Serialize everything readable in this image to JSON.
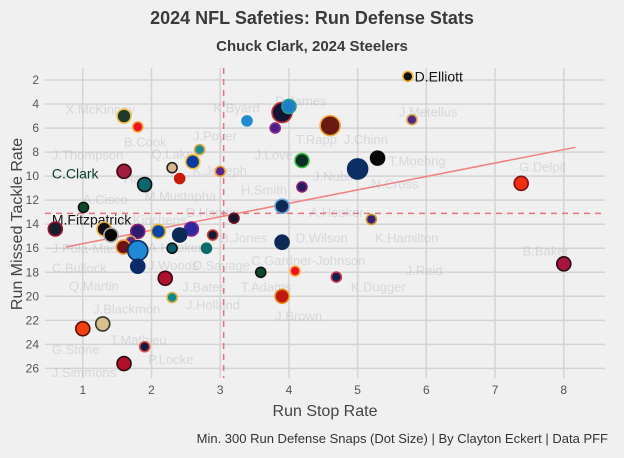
{
  "chart_data": {
    "type": "scatter",
    "title": "2024 NFL Safeties: Run Defense Stats",
    "subtitle": "Chuck Clark, 2024 Steelers",
    "xlabel": "Run Stop Rate",
    "ylabel": "Run Missed Tackle Rate",
    "caption": "Min. 300 Run Defense Snaps (Dot Size) | By Clayton Eckert | Data PFF",
    "xlim": [
      0.45,
      8.6
    ],
    "ylim": [
      26.8,
      1.0
    ],
    "y_inverted": true,
    "x_ticks": [
      1,
      2,
      3,
      4,
      5,
      6,
      7,
      8
    ],
    "y_ticks": [
      2,
      4,
      6,
      8,
      10,
      12,
      14,
      16,
      18,
      20,
      22,
      24,
      26
    ],
    "grid": true,
    "mean_x": 3.05,
    "mean_y": 13.1,
    "trend_line": {
      "x": [
        0.75,
        8.17
      ],
      "y": [
        15.9,
        7.6
      ]
    },
    "colors": {
      "reference": "#e8737a",
      "trend": "#f08080",
      "highlight_text": "#0b3d2c"
    },
    "points": [
      {
        "x": 5.73,
        "y": 1.7,
        "size": 1,
        "fill": "#101010",
        "stroke": "#f2b632"
      },
      {
        "x": 5.79,
        "y": 5.3,
        "size": 1,
        "fill": "#4f2683",
        "stroke": "#d4a640"
      },
      {
        "x": 4.6,
        "y": 5.8,
        "size": 3,
        "fill": "#6b1a12",
        "stroke": "#f2a93b"
      },
      {
        "x": 3.9,
        "y": 4.7,
        "size": 3,
        "fill": "#141432",
        "stroke": "#c83232"
      },
      {
        "x": 4.0,
        "y": 4.2,
        "size": 2,
        "fill": "#1e7ec8",
        "stroke": "#2a9d8f"
      },
      {
        "x": 3.8,
        "y": 6.0,
        "size": 1,
        "fill": "#4b1e8a",
        "stroke": "#8b2a8b"
      },
      {
        "x": 3.39,
        "y": 5.4,
        "size": 1,
        "fill": "#1f8ad0",
        "stroke": "#1f8ad0"
      },
      {
        "x": 4.19,
        "y": 8.7,
        "size": 2,
        "fill": "#0c2d23",
        "stroke": "#3dbb3d"
      },
      {
        "x": 5.0,
        "y": 9.4,
        "size": 3,
        "fill": "#0b2e63",
        "stroke": "#0b2e63"
      },
      {
        "x": 5.29,
        "y": 8.5,
        "size": 2,
        "fill": "#050505",
        "stroke": "#050505"
      },
      {
        "x": 4.19,
        "y": 10.9,
        "size": 1,
        "fill": "#241c5c",
        "stroke": "#8a1f6f"
      },
      {
        "x": 3.9,
        "y": 12.5,
        "size": 2,
        "fill": "#0b2a55",
        "stroke": "#6aa0d8"
      },
      {
        "x": 5.2,
        "y": 13.6,
        "size": 1,
        "fill": "#3b1d7a",
        "stroke": "#c69c2e"
      },
      {
        "x": 7.38,
        "y": 10.6,
        "size": 2,
        "fill": "#f2300f",
        "stroke": "#7a1010"
      },
      {
        "x": 8.0,
        "y": 17.3,
        "size": 2,
        "fill": "#a4163f",
        "stroke": "#2a0a10"
      },
      {
        "x": 3.9,
        "y": 15.5,
        "size": 2,
        "fill": "#0b2a55",
        "stroke": "#0b2a55"
      },
      {
        "x": 3.59,
        "y": 18.0,
        "size": 1,
        "fill": "#0d4a2c",
        "stroke": "#111"
      },
      {
        "x": 4.09,
        "y": 17.9,
        "size": 1,
        "fill": "#f0101e",
        "stroke": "#f5b041"
      },
      {
        "x": 4.69,
        "y": 18.4,
        "size": 1,
        "fill": "#141e48",
        "stroke": "#c8325a"
      },
      {
        "x": 3.9,
        "y": 20.0,
        "size": 2,
        "fill": "#c0180c",
        "stroke": "#e89020"
      },
      {
        "x": 3.2,
        "y": 13.5,
        "size": 1,
        "fill": "#141a2e",
        "stroke": "#6a1020"
      },
      {
        "x": 2.89,
        "y": 14.9,
        "size": 1,
        "fill": "#101c38",
        "stroke": "#d03a30"
      },
      {
        "x": 2.58,
        "y": 14.4,
        "size": 2,
        "fill": "#2a2aa0",
        "stroke": "#8a1f8a"
      },
      {
        "x": 2.41,
        "y": 14.9,
        "size": 2,
        "fill": "#0b2a55",
        "stroke": "#0b2a55"
      },
      {
        "x": 2.1,
        "y": 14.6,
        "size": 2,
        "fill": "#0a45a0",
        "stroke": "#e8b830"
      },
      {
        "x": 1.8,
        "y": 14.6,
        "size": 2,
        "fill": "#2a1a70",
        "stroke": "#8a1f6f"
      },
      {
        "x": 1.7,
        "y": 15.4,
        "size": 1,
        "fill": "#5a2590",
        "stroke": "#d4a640"
      },
      {
        "x": 1.59,
        "y": 15.9,
        "size": 2,
        "fill": "#6a1414",
        "stroke": "#f0a030"
      },
      {
        "x": 1.8,
        "y": 16.2,
        "size": 3,
        "fill": "#2188d8",
        "stroke": "#0b2a55"
      },
      {
        "x": 1.8,
        "y": 17.5,
        "size": 2,
        "fill": "#0b2a6a",
        "stroke": "#0b2a6a"
      },
      {
        "x": 2.3,
        "y": 16.0,
        "size": 1,
        "fill": "#0a5a6a",
        "stroke": "#111"
      },
      {
        "x": 2.8,
        "y": 16.0,
        "size": 1,
        "fill": "#0c6a6a",
        "stroke": "#0c6a6a"
      },
      {
        "x": 2.2,
        "y": 18.5,
        "size": 2,
        "fill": "#b01030",
        "stroke": "#3a0a10"
      },
      {
        "x": 2.3,
        "y": 20.1,
        "size": 1,
        "fill": "#0a8a8a",
        "stroke": "#e0b040"
      },
      {
        "x": 1.31,
        "y": 14.4,
        "size": 2,
        "fill": "#111",
        "stroke": "#f0b030"
      },
      {
        "x": 1.41,
        "y": 14.9,
        "size": 2,
        "fill": "#050505",
        "stroke": "#aaa"
      },
      {
        "x": 0.6,
        "y": 14.4,
        "size": 2,
        "fill": "#14202e",
        "stroke": "#a01030"
      },
      {
        "x": 1.01,
        "y": 12.6,
        "size": 1,
        "fill": "#0d4a2c",
        "stroke": "#111"
      },
      {
        "x": 1.0,
        "y": 22.7,
        "size": 2,
        "fill": "#f04010",
        "stroke": "#5a1000"
      },
      {
        "x": 1.29,
        "y": 22.3,
        "size": 2,
        "fill": "#d8c08a",
        "stroke": "#333"
      },
      {
        "x": 1.9,
        "y": 24.2,
        "size": 1,
        "fill": "#141a40",
        "stroke": "#e05040"
      },
      {
        "x": 1.6,
        "y": 25.6,
        "size": 2,
        "fill": "#b0102a",
        "stroke": "#2a0a10"
      },
      {
        "x": 1.6,
        "y": 9.6,
        "size": 2,
        "fill": "#a01c40",
        "stroke": "#3a0a10"
      },
      {
        "x": 1.9,
        "y": 10.7,
        "size": 2,
        "fill": "#0c6670",
        "stroke": "#111"
      },
      {
        "x": 1.6,
        "y": 5.0,
        "size": 2,
        "fill": "#203a2a",
        "stroke": "#f0c040"
      },
      {
        "x": 1.8,
        "y": 5.9,
        "size": 1,
        "fill": "#f01020",
        "stroke": "#f0a030"
      },
      {
        "x": 2.3,
        "y": 9.3,
        "size": 1,
        "fill": "#d8b888",
        "stroke": "#222"
      },
      {
        "x": 2.41,
        "y": 10.2,
        "size": 1,
        "fill": "#c81a0a",
        "stroke": "#c81a0a"
      },
      {
        "x": 2.6,
        "y": 8.8,
        "size": 2,
        "fill": "#0a3aa0",
        "stroke": "#f0c030"
      },
      {
        "x": 2.7,
        "y": 7.8,
        "size": 1,
        "fill": "#1a8a90",
        "stroke": "#d8a840"
      },
      {
        "x": 3.0,
        "y": 9.6,
        "size": 1,
        "fill": "#5a2590",
        "stroke": "#f0a030"
      }
    ],
    "labels": [
      {
        "text": "D.Elliott",
        "x": 5.83,
        "y": 1.7,
        "strong": true
      },
      {
        "text": "C.Clark",
        "x": 0.55,
        "y": 9.8,
        "strong": true
      },
      {
        "text": "M.Fitzpatrick",
        "x": 0.55,
        "y": 13.6,
        "strong": true
      },
      {
        "text": "X.McKinney",
        "x": 0.75,
        "y": 4.4
      },
      {
        "text": "B.Cook",
        "x": 1.6,
        "y": 7.1
      },
      {
        "text": "J.Thompson",
        "x": 0.55,
        "y": 8.2
      },
      {
        "text": "Harr",
        "x": 1.6,
        "y": 10.2
      },
      {
        "text": "A.Cisco",
        "x": 1.0,
        "y": 11.9
      },
      {
        "text": "M.Mustapha",
        "x": 1.9,
        "y": 11.6
      },
      {
        "text": "Q.Lake",
        "x": 2.0,
        "y": 8.1
      },
      {
        "text": "K.Byard",
        "x": 2.9,
        "y": 4.3
      },
      {
        "text": "D.James",
        "x": 3.8,
        "y": 3.7
      },
      {
        "text": "J.Poyer",
        "x": 2.6,
        "y": 6.6
      },
      {
        "text": "K.Joseph",
        "x": 2.6,
        "y": 9.5
      },
      {
        "text": "H.Smith",
        "x": 3.3,
        "y": 11.1
      },
      {
        "text": "T.Rapp",
        "x": 4.1,
        "y": 6.9
      },
      {
        "text": "J.Love",
        "x": 3.5,
        "y": 8.2
      },
      {
        "text": "J.Chinn",
        "x": 4.8,
        "y": 6.9
      },
      {
        "text": "J.Metellus",
        "x": 5.6,
        "y": 4.6
      },
      {
        "text": "T.Moehrig",
        "x": 5.45,
        "y": 8.7
      },
      {
        "text": "J.Nubin",
        "x": 4.35,
        "y": 10.0
      },
      {
        "text": "N.Cross",
        "x": 5.2,
        "y": 10.6
      },
      {
        "text": "G.Delpit",
        "x": 7.35,
        "y": 9.2
      },
      {
        "text": "D.Hamlin",
        "x": 2.5,
        "y": 13.0
      },
      {
        "text": "A.Hooker",
        "x": 4.3,
        "y": 13.0
      },
      {
        "text": "K.Kinchens",
        "x": 1.55,
        "y": 13.6
      },
      {
        "text": "B.Jones",
        "x": 3.0,
        "y": 15.1
      },
      {
        "text": "D.Wilson",
        "x": 4.1,
        "y": 15.1
      },
      {
        "text": "K.Hamilton",
        "x": 5.25,
        "y": 15.1
      },
      {
        "text": "C.Gardner-Johnson",
        "x": 3.45,
        "y": 17.0
      },
      {
        "text": "J.Reid",
        "x": 5.7,
        "y": 17.8
      },
      {
        "text": "B.Baker",
        "x": 7.4,
        "y": 16.2
      },
      {
        "text": "K.Dugger",
        "x": 4.9,
        "y": 19.2
      },
      {
        "text": "T.Adams",
        "x": 3.3,
        "y": 19.2
      },
      {
        "text": "J.Bates",
        "x": 2.45,
        "y": 19.2
      },
      {
        "text": "J.Brown",
        "x": 3.8,
        "y": 21.6
      },
      {
        "text": "J.Holland",
        "x": 2.5,
        "y": 20.7
      },
      {
        "text": "D.Savage",
        "x": 2.6,
        "y": 17.4
      },
      {
        "text": "J.Woods",
        "x": 1.95,
        "y": 17.4
      },
      {
        "text": "A.Hooker",
        "x": 1.95,
        "y": 15.9
      },
      {
        "text": "J.Pola-Mao",
        "x": 0.55,
        "y": 16.0
      },
      {
        "text": "C.Bullock",
        "x": 0.55,
        "y": 17.6
      },
      {
        "text": "Q.Martin",
        "x": 0.8,
        "y": 19.1
      },
      {
        "text": "J.Blackmon",
        "x": 1.15,
        "y": 21.0
      },
      {
        "text": "T.Mathieu",
        "x": 1.4,
        "y": 23.6
      },
      {
        "text": "G.Stone",
        "x": 0.55,
        "y": 24.4
      },
      {
        "text": "P.Locke",
        "x": 1.95,
        "y": 25.2
      },
      {
        "text": "J.Simmons",
        "x": 0.55,
        "y": 26.3
      }
    ]
  }
}
